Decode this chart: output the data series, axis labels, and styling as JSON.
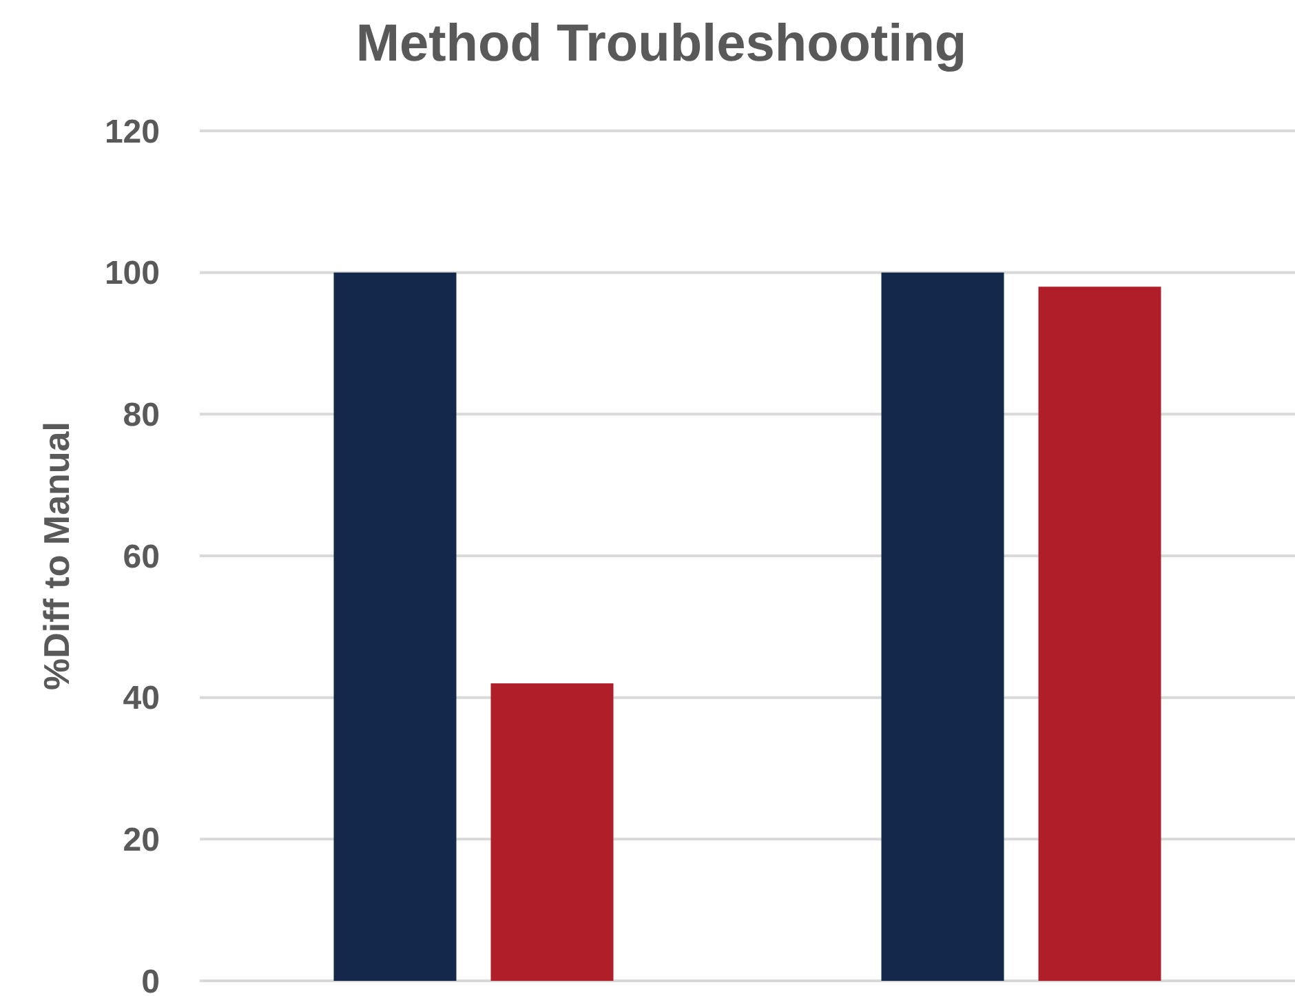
{
  "chart_data": {
    "type": "bar",
    "title": "Method Troubleshooting",
    "ylabel": "%Diff to Manual",
    "categories": [
      null,
      null
    ],
    "series": [
      {
        "color": "#14284b",
        "values": [
          100,
          100
        ]
      },
      {
        "color": "#b01e2a",
        "values": [
          42,
          98
        ]
      }
    ],
    "ylim": [
      0,
      120
    ],
    "yticks": [
      0,
      20,
      40,
      60,
      80,
      100,
      120
    ],
    "grid": "y"
  }
}
